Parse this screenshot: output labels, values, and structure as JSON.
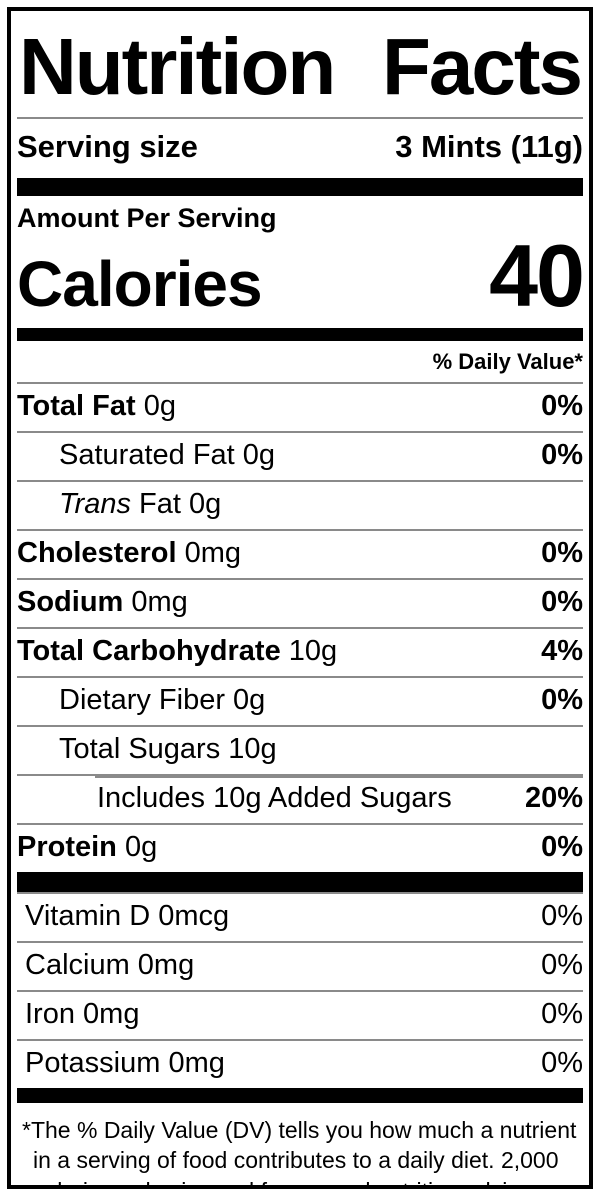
{
  "label": {
    "title": {
      "word1": "Nutrition",
      "word2": "Facts"
    },
    "serving": {
      "label": "Serving size",
      "value": "3 Mints (11g)"
    },
    "amount_per_serving": "Amount Per Serving",
    "calories": {
      "label": "Calories",
      "value": "40"
    },
    "daily_value_header": "% Daily Value*",
    "nutrients": [
      {
        "name": "Total Fat",
        "style": "bold",
        "amount": "0g",
        "dv": "0%",
        "dv_bold": true,
        "indent": 0
      },
      {
        "name": "Saturated Fat",
        "style": "regular",
        "amount": "0g",
        "dv": "0%",
        "dv_bold": true,
        "indent": 1
      },
      {
        "name": "Trans",
        "style": "italic",
        "amount": "Fat 0g",
        "dv": "",
        "dv_bold": false,
        "indent": 1
      },
      {
        "name": "Cholesterol",
        "style": "bold",
        "amount": "0mg",
        "dv": "0%",
        "dv_bold": true,
        "indent": 0
      },
      {
        "name": "Sodium",
        "style": "bold",
        "amount": "0mg",
        "dv": "0%",
        "dv_bold": true,
        "indent": 0
      },
      {
        "name": "Total Carbohydrate",
        "style": "bold",
        "amount": "10g",
        "dv": "4%",
        "dv_bold": true,
        "indent": 0
      },
      {
        "name": "Dietary Fiber",
        "style": "regular",
        "amount": "0g",
        "dv": "0%",
        "dv_bold": true,
        "indent": 1
      },
      {
        "name": "Total Sugars",
        "style": "regular",
        "amount": "10g",
        "dv": "",
        "dv_bold": false,
        "indent": 1
      },
      {
        "name": "Includes 10g Added Sugars",
        "style": "regular",
        "amount": "",
        "dv": "20%",
        "dv_bold": true,
        "indent": 2,
        "partial_rule": true
      },
      {
        "name": "Protein",
        "style": "bold",
        "amount": "0g",
        "dv": "0%",
        "dv_bold": true,
        "indent": 0
      }
    ],
    "vitamins": [
      {
        "name": "Vitamin D",
        "style": "regular",
        "amount": "0mcg",
        "dv": "0%",
        "dv_bold": false,
        "indent": 0
      },
      {
        "name": "Calcium",
        "style": "regular",
        "amount": "0mg",
        "dv": "0%",
        "dv_bold": false,
        "indent": 0
      },
      {
        "name": "Iron",
        "style": "regular",
        "amount": "0mg",
        "dv": "0%",
        "dv_bold": false,
        "indent": 0
      },
      {
        "name": "Potassium",
        "style": "regular",
        "amount": "0mg",
        "dv": "0%",
        "dv_bold": false,
        "indent": 0
      }
    ],
    "footnote": "*The % Daily Value (DV) tells you how much a nutrient in a serving of food contributes to a daily diet. 2,000 calories a day is used for general nutrition advice.",
    "colors": {
      "text": "#000000",
      "bar": "#000000",
      "divider": "#8a8a8a",
      "background": "#ffffff"
    }
  }
}
